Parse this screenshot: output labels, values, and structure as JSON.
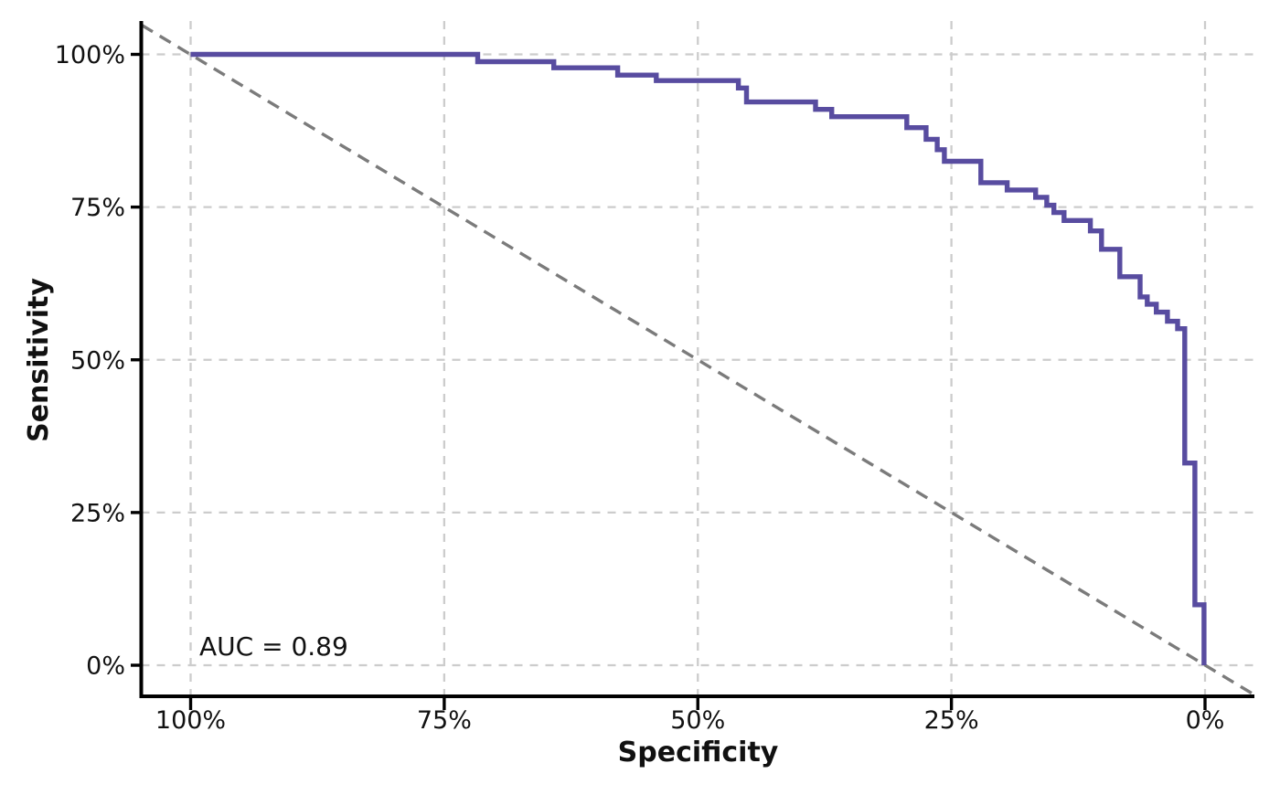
{
  "chart_data": {
    "type": "line",
    "subtype": "roc-curve",
    "title": "",
    "xlabel": "Specificity",
    "ylabel": "Sensitivity",
    "annotation": "AUC = 0.89",
    "auc": 0.89,
    "grid": true,
    "legend": "none",
    "x_axis": {
      "label": "Specificity",
      "ticks": [
        100,
        75,
        50,
        25,
        0
      ],
      "tick_labels": [
        "100%",
        "75%",
        "50%",
        "25%",
        "0%"
      ],
      "range": [
        100,
        0
      ],
      "direction": "reversed",
      "unit": "percent"
    },
    "y_axis": {
      "label": "Sensitivity",
      "ticks": [
        100,
        75,
        50,
        25,
        0
      ],
      "tick_labels": [
        "100%",
        "75%",
        "50%",
        "25%",
        "0%"
      ],
      "range": [
        0,
        100
      ],
      "unit": "percent"
    },
    "reference_line": {
      "name": "chance-diagonal",
      "style": "dashed",
      "from": {
        "specificity": 100,
        "sensitivity": 100
      },
      "to": {
        "specificity": 0,
        "sensitivity": 0
      }
    },
    "colors": {
      "curve": "#584CA0",
      "grid": "#cccccc",
      "diagonal": "#7b7b7b",
      "axis": "#000000",
      "text": "#111111",
      "background": "#ffffff"
    },
    "series": [
      {
        "name": "roc-curve",
        "style": "step",
        "color": "#584CA0",
        "points_format": [
          "specificity_pct",
          "sensitivity_pct"
        ],
        "points": [
          [
            100,
            100
          ],
          [
            71.7,
            100
          ],
          [
            71.7,
            98.8
          ],
          [
            64.2,
            98.8
          ],
          [
            64.2,
            97.8
          ],
          [
            57.9,
            97.8
          ],
          [
            57.9,
            96.6
          ],
          [
            54.1,
            96.6
          ],
          [
            54.1,
            95.7
          ],
          [
            46.0,
            95.7
          ],
          [
            46.0,
            94.5
          ],
          [
            45.2,
            94.5
          ],
          [
            45.2,
            92.2
          ],
          [
            38.4,
            92.2
          ],
          [
            38.4,
            91.0
          ],
          [
            36.8,
            91.0
          ],
          [
            36.8,
            89.8
          ],
          [
            29.4,
            89.8
          ],
          [
            29.4,
            88.0
          ],
          [
            27.5,
            88.0
          ],
          [
            27.5,
            86.1
          ],
          [
            26.4,
            86.1
          ],
          [
            26.4,
            84.4
          ],
          [
            25.7,
            84.4
          ],
          [
            25.7,
            82.5
          ],
          [
            22.1,
            82.5
          ],
          [
            22.1,
            79.0
          ],
          [
            19.5,
            79.0
          ],
          [
            19.5,
            77.8
          ],
          [
            16.7,
            77.8
          ],
          [
            16.7,
            76.6
          ],
          [
            15.6,
            76.6
          ],
          [
            15.6,
            75.3
          ],
          [
            14.9,
            75.3
          ],
          [
            14.9,
            74.1
          ],
          [
            13.9,
            74.1
          ],
          [
            13.9,
            72.8
          ],
          [
            11.3,
            72.8
          ],
          [
            11.3,
            71.1
          ],
          [
            10.2,
            71.1
          ],
          [
            10.2,
            68.1
          ],
          [
            8.4,
            68.1
          ],
          [
            8.4,
            63.6
          ],
          [
            6.4,
            63.6
          ],
          [
            6.4,
            60.3
          ],
          [
            5.7,
            60.3
          ],
          [
            5.7,
            59.1
          ],
          [
            4.8,
            59.1
          ],
          [
            4.8,
            57.8
          ],
          [
            3.7,
            57.8
          ],
          [
            3.7,
            56.3
          ],
          [
            2.7,
            56.3
          ],
          [
            2.7,
            55.1
          ],
          [
            2.0,
            55.1
          ],
          [
            2.0,
            33.1
          ],
          [
            1.0,
            33.1
          ],
          [
            1.0,
            9.9
          ],
          [
            0.1,
            9.9
          ],
          [
            0.1,
            0
          ]
        ]
      }
    ]
  }
}
